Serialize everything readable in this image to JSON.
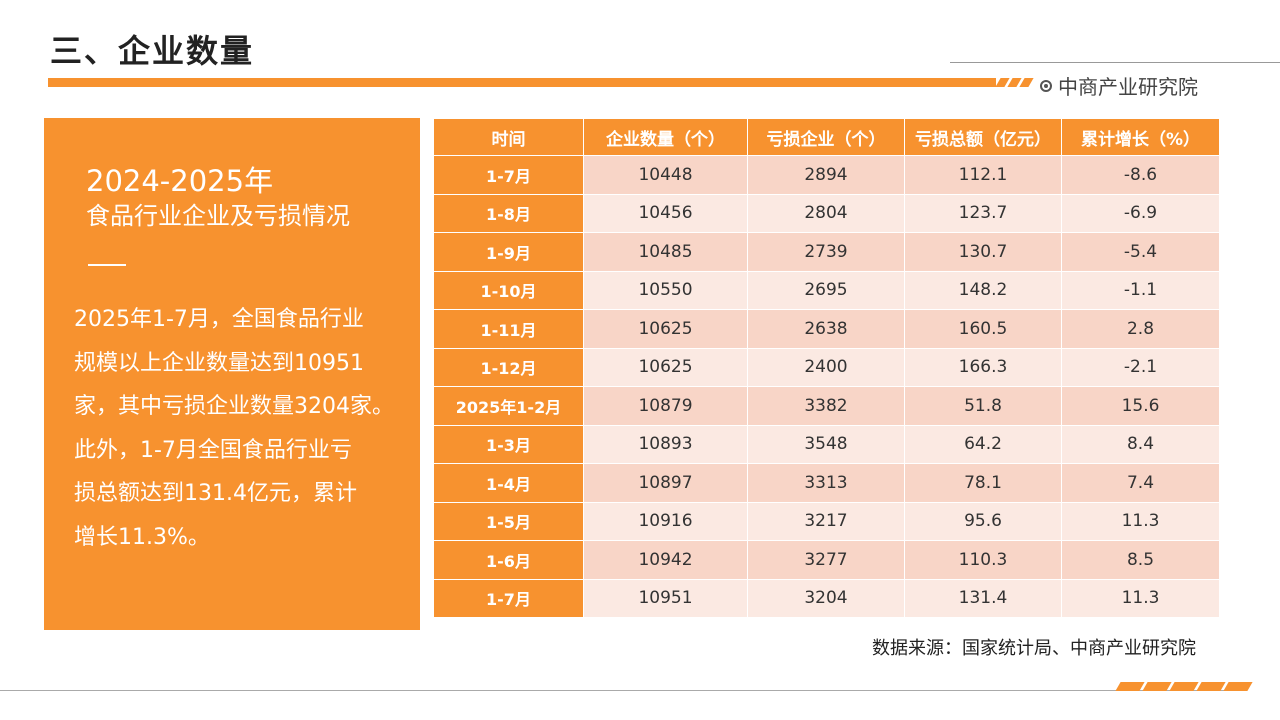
{
  "header": {
    "title": "三、企业数量",
    "brand": "中商产业研究院"
  },
  "panel": {
    "heading_year": "2024-2025年",
    "heading_sub": "食品行业企业及亏损情况",
    "body": "2025年1-7月，全国食品行业\n规模以上企业数量达到10951\n家，其中亏损企业数量3204家。\n此外，1-7月全国食品行业亏\n损总额达到131.4亿元，累计\n增长11.3%。"
  },
  "table": {
    "headers": [
      "时间",
      "企业数量（个）",
      "亏损企业（个）",
      "亏损总额（亿元）",
      "累计增长（%）"
    ],
    "rows": [
      [
        "1-7月",
        "10448",
        "2894",
        "112.1",
        "-8.6"
      ],
      [
        "1-8月",
        "10456",
        "2804",
        "123.7",
        "-6.9"
      ],
      [
        "1-9月",
        "10485",
        "2739",
        "130.7",
        "-5.4"
      ],
      [
        "1-10月",
        "10550",
        "2695",
        "148.2",
        "-1.1"
      ],
      [
        "1-11月",
        "10625",
        "2638",
        "160.5",
        "2.8"
      ],
      [
        "1-12月",
        "10625",
        "2400",
        "166.3",
        "-2.1"
      ],
      [
        "2025年1-2月",
        "10879",
        "3382",
        "51.8",
        "15.6"
      ],
      [
        "1-3月",
        "10893",
        "3548",
        "64.2",
        "8.4"
      ],
      [
        "1-4月",
        "10897",
        "3313",
        "78.1",
        "7.4"
      ],
      [
        "1-5月",
        "10916",
        "3217",
        "95.6",
        "11.3"
      ],
      [
        "1-6月",
        "10942",
        "3277",
        "110.3",
        "8.5"
      ],
      [
        "1-7月",
        "10951",
        "3204",
        "131.4",
        "11.3"
      ]
    ]
  },
  "footer": {
    "source": "数据来源：国家统计局、中商产业研究院"
  },
  "colors": {
    "accent": "#F7922F",
    "row_odd": "#F8D5C7",
    "row_even": "#FBE9E2"
  }
}
